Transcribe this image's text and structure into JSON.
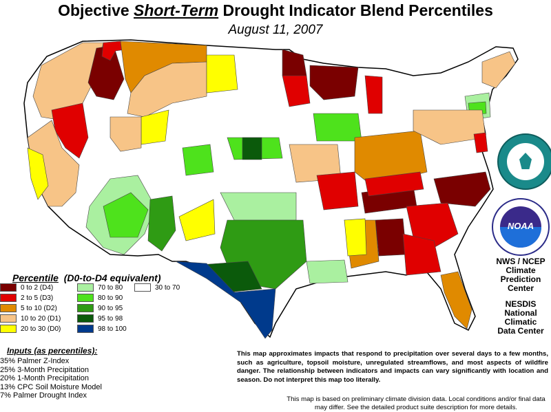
{
  "header": {
    "title_prefix": "Objective ",
    "title_emphasis": "Short-Term",
    "title_suffix": " Drought Indicator Blend Percentiles",
    "date": "August 11, 2007"
  },
  "legend": {
    "title_main": "Percentile",
    "title_sub": "(D0-to-D4 equivalent)",
    "items": [
      {
        "label": "0 to 2  (D4)",
        "color": "#7a0000"
      },
      {
        "label": "2 to 5  (D3)",
        "color": "#e00000"
      },
      {
        "label": "5 to 10  (D2)",
        "color": "#e08a00"
      },
      {
        "label": "10 to 20  (D1)",
        "color": "#f7c487"
      },
      {
        "label": "20 to 30  (D0)",
        "color": "#ffff00"
      },
      {
        "label": "70 to 80",
        "color": "#aaf0a0"
      },
      {
        "label": "80 to 90",
        "color": "#4ee21c"
      },
      {
        "label": "90 to 95",
        "color": "#2f9b14"
      },
      {
        "label": "95 to 98",
        "color": "#0b5a0b"
      },
      {
        "label": "98 to 100",
        "color": "#003a8c"
      },
      {
        "label": "30 to 70",
        "color": "#ffffff"
      }
    ]
  },
  "inputs": {
    "title": "Inputs (as percentiles):",
    "items": [
      "35%  Palmer Z-Index",
      "25%  3-Month Precipitation",
      "20%  1-Month Precipitation",
      "13%  CPC Soil Moisture Model",
      "  7%  Palmer Drought Index"
    ]
  },
  "agencies": {
    "cpc": [
      "NWS / NCEP",
      "Climate",
      "Prediction",
      "Center"
    ],
    "nesdis": [
      "NESDIS",
      "National",
      "Climatic",
      "Data Center"
    ],
    "noaa_logo_text": "NOAA"
  },
  "disclaimer": "This map approximates impacts that respond to precipitation over several days to a few months, such as agriculture, topsoil moisture, unregulated streamflows, and most aspects of wildfire danger. The relationship between indicators and impacts can vary significantly with location and season. Do not interpret this map too literally.",
  "note": "This map is based on preliminary climate division data. Local conditions and/or final data may differ. See the detailed product suite description for more details.",
  "colors": {
    "d4": "#7a0000",
    "d3": "#e00000",
    "d2": "#e08a00",
    "d1": "#f7c487",
    "d0": "#ffff00",
    "w70": "#aaf0a0",
    "w80": "#4ee21c",
    "w90": "#2f9b14",
    "w95": "#0b5a0b",
    "w98": "#003a8c"
  }
}
